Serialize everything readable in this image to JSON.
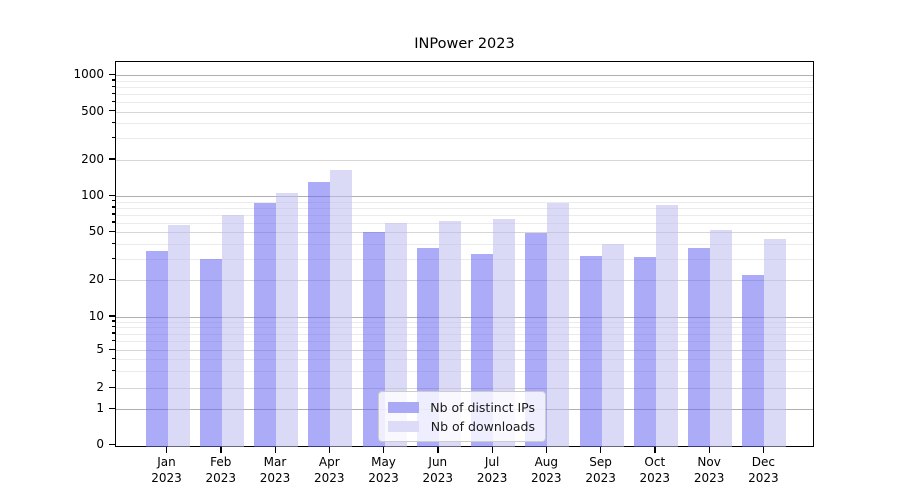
{
  "chart_data": {
    "type": "bar",
    "title": "INPower 2023",
    "categories": [
      "Jan 2023",
      "Feb 2023",
      "Mar 2023",
      "Apr 2023",
      "May 2023",
      "Jun 2023",
      "Jul 2023",
      "Aug 2023",
      "Sep 2023",
      "Oct 2023",
      "Nov 2023",
      "Dec 2023"
    ],
    "series": [
      {
        "name": "Nb of distinct IPs",
        "color_fill": "rgba(102,102,240,0.55)",
        "color_solid": "#a9a9f6",
        "values": [
          35,
          30,
          88,
          130,
          50,
          37,
          33,
          49,
          32,
          31,
          37,
          22
        ]
      },
      {
        "name": "Nb of downloads",
        "color_fill": "rgba(187,187,240,0.55)",
        "color_solid": "#dcdcf9",
        "values": [
          58,
          70,
          105,
          165,
          60,
          62,
          64,
          88,
          40,
          84,
          52,
          44
        ]
      }
    ],
    "xlabel": "",
    "ylabel": "",
    "yscale": "symlog",
    "ylim": [
      0,
      1000
    ],
    "yticks_labeled": [
      0,
      1,
      2,
      5,
      10,
      20,
      50,
      100,
      200,
      500,
      1000
    ],
    "yticks_major": [
      1,
      10,
      100,
      1000
    ],
    "yticks_unlabeled_minor": [
      3,
      4,
      6,
      7,
      8,
      9,
      30,
      40,
      60,
      70,
      80,
      90,
      300,
      400,
      600,
      700,
      800,
      900
    ],
    "grid": "on",
    "legend_position": "lower center",
    "colors": {
      "grid_major": "#b0b0b0",
      "grid_mid": "#d6d6d6",
      "grid_minor": "#ebebeb",
      "axis": "#000000",
      "legend_border": "#cccccc"
    }
  }
}
